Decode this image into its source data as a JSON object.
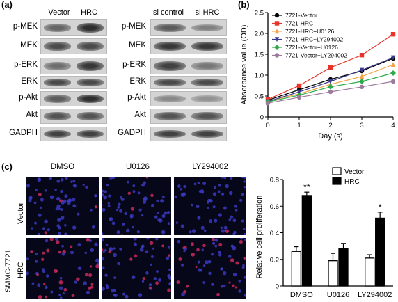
{
  "panels": {
    "a": "(a)",
    "b": "(b)",
    "c": "(c)"
  },
  "blot_left": {
    "lanes": [
      "Vector",
      "HRC"
    ],
    "rows": [
      {
        "label": "p-MEK",
        "intensity": [
          0.55,
          0.85
        ]
      },
      {
        "label": "MEK",
        "intensity": [
          0.7,
          0.7
        ]
      },
      {
        "label": "p-ERK",
        "intensity": [
          0.5,
          0.8
        ]
      },
      {
        "label": "ERK",
        "intensity": [
          0.7,
          0.7
        ]
      },
      {
        "label": "p-Akt",
        "intensity": [
          0.6,
          0.85
        ]
      },
      {
        "label": "Akt",
        "intensity": [
          0.65,
          0.65
        ]
      },
      {
        "label": "GADPH",
        "intensity": [
          0.75,
          0.75
        ]
      }
    ]
  },
  "blot_right": {
    "lanes": [
      "si control",
      "si HRC"
    ],
    "rows": [
      {
        "label": "p-MEK",
        "intensity": [
          0.6,
          0.4
        ]
      },
      {
        "label": "MEK",
        "intensity": [
          0.8,
          0.8
        ]
      },
      {
        "label": "p-ERK",
        "intensity": [
          0.75,
          0.45
        ]
      },
      {
        "label": "ERK",
        "intensity": [
          0.7,
          0.7
        ]
      },
      {
        "label": "p-Akt",
        "intensity": [
          0.35,
          0.3
        ]
      },
      {
        "label": "Akt",
        "intensity": [
          0.65,
          0.65
        ]
      },
      {
        "label": "GADPH",
        "intensity": [
          0.75,
          0.75
        ]
      }
    ]
  },
  "micrographs": {
    "side_label": "SMMC-7721",
    "row_labels": [
      "Vector",
      "HRC"
    ],
    "col_labels": [
      "DMSO",
      "U0126",
      "LY294002"
    ]
  },
  "chart_data": [
    {
      "type": "line",
      "xlabel": "Day (s)",
      "ylabel": "Absorbance value (OD)",
      "x": [
        0,
        1,
        2,
        3,
        4
      ],
      "xlim": [
        0,
        4
      ],
      "ylim": [
        0,
        2.5
      ],
      "xticks": [
        "0",
        "1",
        "2",
        "3",
        "4"
      ],
      "yticks": [
        "0",
        "0.5",
        "1.0",
        "1.5",
        "2.0",
        "2.5"
      ],
      "legend_position": "top-left",
      "series": [
        {
          "name": "7721-Vector",
          "color": "#000000",
          "marker": "circle",
          "values": [
            0.4,
            0.65,
            0.9,
            1.1,
            1.4
          ]
        },
        {
          "name": "7721-HRC",
          "color": "#e8332a",
          "marker": "square",
          "values": [
            0.42,
            0.75,
            1.18,
            1.48,
            1.98
          ]
        },
        {
          "name": "7721-HRC+U0126",
          "color": "#f3a345",
          "marker": "triangle-up",
          "values": [
            0.38,
            0.55,
            0.78,
            0.97,
            1.25
          ]
        },
        {
          "name": "7721-HRC+LY294002",
          "color": "#3a3a8c",
          "marker": "triangle-down",
          "values": [
            0.37,
            0.6,
            0.85,
            1.12,
            1.42
          ]
        },
        {
          "name": "7721-Vector+U0126",
          "color": "#2eaa4a",
          "marker": "diamond",
          "values": [
            0.36,
            0.52,
            0.72,
            0.85,
            1.05
          ]
        },
        {
          "name": "7721-Vector+LY294002",
          "color": "#9b7a9b",
          "marker": "circle",
          "values": [
            0.33,
            0.47,
            0.6,
            0.72,
            0.85
          ]
        }
      ]
    },
    {
      "type": "bar",
      "ylabel": "Relative cell proliferation",
      "categories": [
        "DMSO",
        "U0126",
        "LY294002"
      ],
      "ylim": [
        0,
        0.8
      ],
      "yticks": [
        "0",
        "0.2",
        "0.4",
        "0.6",
        "0.8"
      ],
      "legend_position": "top-right",
      "series": [
        {
          "name": "Vector",
          "fill": "#ffffff",
          "values": [
            0.26,
            0.19,
            0.21
          ],
          "errors": [
            0.035,
            0.055,
            0.025
          ]
        },
        {
          "name": "HRC",
          "fill": "#000000",
          "values": [
            0.68,
            0.28,
            0.51
          ],
          "errors": [
            0.025,
            0.04,
            0.045
          ]
        }
      ],
      "annotations": [
        "**",
        "",
        "*"
      ]
    }
  ]
}
